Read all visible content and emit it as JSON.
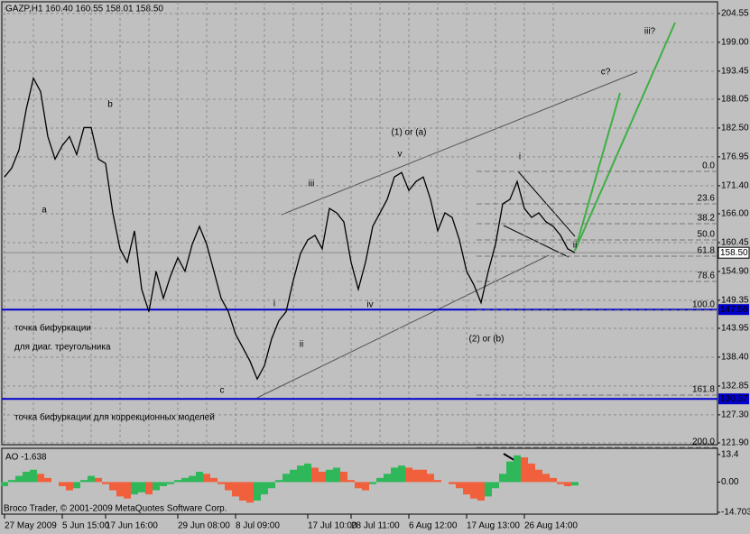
{
  "chart_data": [
    {
      "type": "line",
      "title": "GAZP,H1  160.40 160.55 158.01 158.50",
      "categories": [
        "27 May 2009",
        null,
        null,
        null,
        null,
        null,
        null,
        null,
        "5 Jun 15:00",
        null,
        null,
        null,
        null,
        null,
        "17 Jun 16:00",
        null,
        null,
        null,
        null,
        null,
        null,
        null,
        null,
        null,
        "29 Jun 08:00",
        null,
        null,
        null,
        null,
        null,
        null,
        null,
        "8 Jul 09:00",
        null,
        null,
        null,
        null,
        null,
        null,
        null,
        null,
        null,
        "17 Jul 10:00",
        null,
        null,
        null,
        null,
        null,
        "28 Jul 11:00",
        null,
        null,
        null,
        null,
        null,
        null,
        null,
        "6 Aug 12:00",
        null,
        null,
        null,
        null,
        null,
        null,
        null,
        "17 Aug 13:00",
        null,
        null,
        null,
        null,
        null,
        null,
        null,
        "26 Aug 14:00",
        null,
        null,
        null,
        null,
        null,
        null,
        null
      ],
      "values": [
        173.08,
        174.81,
        178.27,
        186.05,
        192.1,
        189.51,
        180.86,
        176.54,
        179.14,
        180.86,
        177.4,
        182.59,
        182.59,
        176.54,
        175.68,
        166.17,
        159.25,
        156.66,
        162.71,
        151.47,
        147.15,
        154.93,
        149.74,
        154.07,
        157.52,
        154.93,
        160.12,
        163.57,
        160.12,
        154.93,
        149.74,
        147.15,
        142.83,
        140.24,
        137.64,
        134.18,
        136.78,
        141.96,
        145.42,
        147.15,
        153.2,
        158.39,
        160.98,
        161.85,
        159.25,
        167.03,
        166.17,
        164.44,
        156.66,
        151.47,
        156.66,
        163.57,
        166.17,
        168.76,
        173.08,
        173.95,
        170.49,
        172.22,
        173.08,
        168.76,
        162.71,
        166.17,
        165.3,
        160.98,
        154.93,
        152.34,
        148.88,
        154.93,
        160.12,
        167.9,
        168.76,
        172.22,
        167.03,
        165.3,
        166.17,
        164.44,
        163.57,
        161.85,
        159.25,
        158.5
      ],
      "color": "#000000",
      "ylim": [
        121.55,
        206.8
      ],
      "yticks": [
        204.55,
        {
          "value": 199,
          "label": "199.00"
        },
        193.45,
        188.05,
        {
          "value": 182.5,
          "label": "182.50"
        },
        176.95,
        {
          "value": 171.4,
          "label": "171.40"
        },
        {
          "value": 166,
          "label": "166.00"
        },
        160.45,
        {
          "value": 154.9,
          "label": "154.90"
        },
        149.35,
        143.95,
        {
          "value": 138.4,
          "label": "138.40"
        },
        132.85,
        {
          "value": 127.3,
          "label": "127.30"
        },
        {
          "value": 121.9,
          "label": "121.90"
        }
      ],
      "grid": true,
      "levels": [
        {
          "value": 158.5,
          "label": "158.50",
          "color": "#8c8c8c"
        },
        {
          "value": 147.56,
          "label": "147.56",
          "color": "#0000cc"
        },
        {
          "value": 130.37,
          "label": "130.37",
          "color": "#0000cc"
        }
      ],
      "fib_labels": [
        "0.0",
        "23.6",
        "38.2",
        "50.0",
        "61.8",
        "78.6",
        "100.0",
        "161.8",
        "200.0"
      ],
      "annotations": [
        "a",
        "b",
        "c",
        "i",
        "ii",
        "iii",
        "iv",
        "v",
        "i",
        "ii",
        "(1) or (a)",
        "(2) or (b)",
        "c?",
        "iii?",
        "точка бифуркации",
        "для диаг. треугольника",
        "точка бифуркации для коррекционных моделей"
      ]
    },
    {
      "type": "bar",
      "title": "AO -1.638",
      "values": [
        -2,
        1,
        3,
        5,
        6,
        4,
        2,
        0,
        -2,
        -4,
        -3,
        1,
        3,
        2,
        -1,
        -4,
        -7,
        -8,
        -6,
        -5,
        -6,
        -4,
        -2,
        -1,
        1,
        2,
        3,
        5,
        4,
        2,
        -1,
        -4,
        -7,
        -9,
        -10,
        -9,
        -6,
        -3,
        1,
        4,
        6,
        8,
        9,
        7,
        5,
        6,
        7,
        5,
        1,
        -3,
        -4,
        -1,
        2,
        4,
        7,
        8,
        7,
        6,
        6,
        4,
        1,
        0,
        -1,
        -3,
        -6,
        -8,
        -9,
        -7,
        -3,
        4,
        10,
        13,
        12,
        9,
        6,
        4,
        2,
        -1,
        -2,
        -1.638
      ],
      "up_color": "#2fb85a",
      "down_color": "#f0603c",
      "ylim": [
        -15.6,
        16.4
      ],
      "yticks": [
        13.4,
        {
          "value": 0,
          "label": "0.00"
        },
        -14.703
      ]
    }
  ],
  "footer": "Broco Trader, © 2001-2009 MetaQuotes Software Corp."
}
